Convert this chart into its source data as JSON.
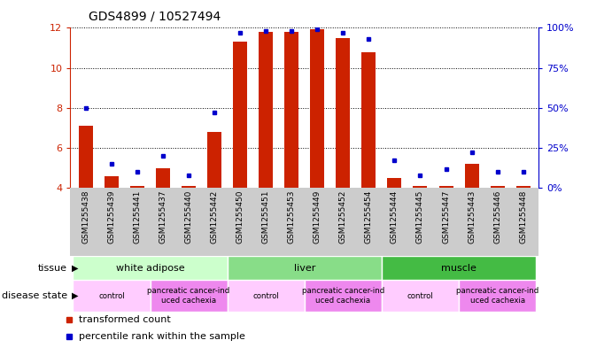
{
  "title": "GDS4899 / 10527494",
  "samples": [
    "GSM1255438",
    "GSM1255439",
    "GSM1255441",
    "GSM1255437",
    "GSM1255440",
    "GSM1255442",
    "GSM1255450",
    "GSM1255451",
    "GSM1255453",
    "GSM1255449",
    "GSM1255452",
    "GSM1255454",
    "GSM1255444",
    "GSM1255445",
    "GSM1255447",
    "GSM1255443",
    "GSM1255446",
    "GSM1255448"
  ],
  "transformed_count": [
    7.1,
    4.6,
    4.1,
    5.0,
    4.1,
    6.8,
    11.3,
    11.8,
    11.8,
    11.95,
    11.5,
    10.8,
    4.5,
    4.1,
    4.1,
    5.2,
    4.1,
    4.1
  ],
  "percentile_rank": [
    50,
    15,
    10,
    20,
    8,
    47,
    97,
    98,
    98,
    99,
    97,
    93,
    17,
    8,
    12,
    22,
    10,
    10
  ],
  "ylim_left": [
    4,
    12
  ],
  "ylim_right": [
    0,
    100
  ],
  "yticks_left": [
    4,
    6,
    8,
    10,
    12
  ],
  "yticks_right": [
    0,
    25,
    50,
    75,
    100
  ],
  "bar_color": "#cc2200",
  "dot_color": "#0000cc",
  "tissue_groups": [
    {
      "label": "white adipose",
      "start": 0,
      "end": 6,
      "color": "#ccffcc"
    },
    {
      "label": "liver",
      "start": 6,
      "end": 12,
      "color": "#88dd88"
    },
    {
      "label": "muscle",
      "start": 12,
      "end": 18,
      "color": "#44bb44"
    }
  ],
  "disease_groups": [
    {
      "label": "control",
      "start": 0,
      "end": 3,
      "color": "#ffccff"
    },
    {
      "label": "pancreatic cancer-ind\nuced cachexia",
      "start": 3,
      "end": 6,
      "color": "#ee88ee"
    },
    {
      "label": "control",
      "start": 6,
      "end": 9,
      "color": "#ffccff"
    },
    {
      "label": "pancreatic cancer-ind\nuced cachexia",
      "start": 9,
      "end": 12,
      "color": "#ee88ee"
    },
    {
      "label": "control",
      "start": 12,
      "end": 15,
      "color": "#ffccff"
    },
    {
      "label": "pancreatic cancer-ind\nuced cachexia",
      "start": 15,
      "end": 18,
      "color": "#ee88ee"
    }
  ],
  "background_color": "#ffffff",
  "grid_color": "#000000",
  "tick_color_left": "#cc2200",
  "tick_color_right": "#0000cc",
  "label_bg_color": "#cccccc"
}
